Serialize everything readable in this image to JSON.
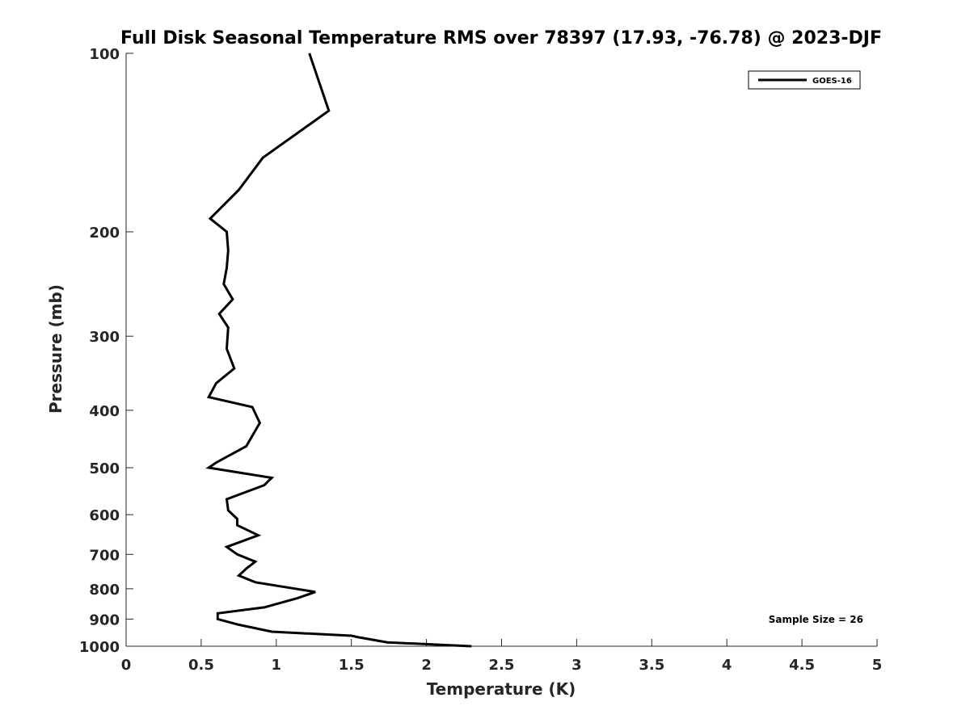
{
  "chart_data": {
    "type": "line",
    "title": "Full Disk Seasonal Temperature RMS over 78397 (17.93, -76.78) @ 2023-DJF",
    "xlabel": "Temperature (K)",
    "ylabel": "Pressure (mb)",
    "xlim": [
      0,
      5
    ],
    "ylim": [
      100,
      1000
    ],
    "yscale": "log",
    "yreversed": true,
    "grid": false,
    "legend_position": "top-right",
    "x_ticks": [
      "0",
      "0.5",
      "1",
      "1.5",
      "2",
      "2.5",
      "3",
      "3.5",
      "4",
      "4.5",
      "5"
    ],
    "y_ticks": [
      "100",
      "200",
      "300",
      "400",
      "500",
      "600",
      "700",
      "800",
      "900",
      "1000"
    ],
    "annotation": "Sample Size = 26",
    "series": [
      {
        "name": "GOES-16",
        "color": "#000000",
        "x": [
          1.22,
          1.35,
          0.91,
          0.75,
          0.56,
          0.67,
          0.68,
          0.67,
          0.65,
          0.71,
          0.62,
          0.68,
          0.67,
          0.72,
          0.6,
          0.55,
          0.84,
          0.89,
          0.8,
          0.6,
          0.55,
          0.97,
          0.92,
          0.67,
          0.68,
          0.74,
          0.74,
          0.88,
          0.67,
          0.74,
          0.86,
          0.8,
          0.75,
          0.86,
          1.26,
          1.14,
          0.92,
          0.61,
          0.61,
          0.75,
          0.97,
          1.5,
          1.55,
          1.74,
          2.3
        ],
        "y": [
          100,
          125,
          150,
          170,
          190,
          200,
          215,
          230,
          245,
          260,
          275,
          290,
          315,
          340,
          360,
          380,
          395,
          420,
          460,
          490,
          500,
          520,
          535,
          565,
          590,
          610,
          625,
          650,
          680,
          700,
          720,
          740,
          760,
          780,
          810,
          830,
          860,
          880,
          900,
          920,
          945,
          960,
          966,
          985,
          1000
        ]
      }
    ]
  }
}
